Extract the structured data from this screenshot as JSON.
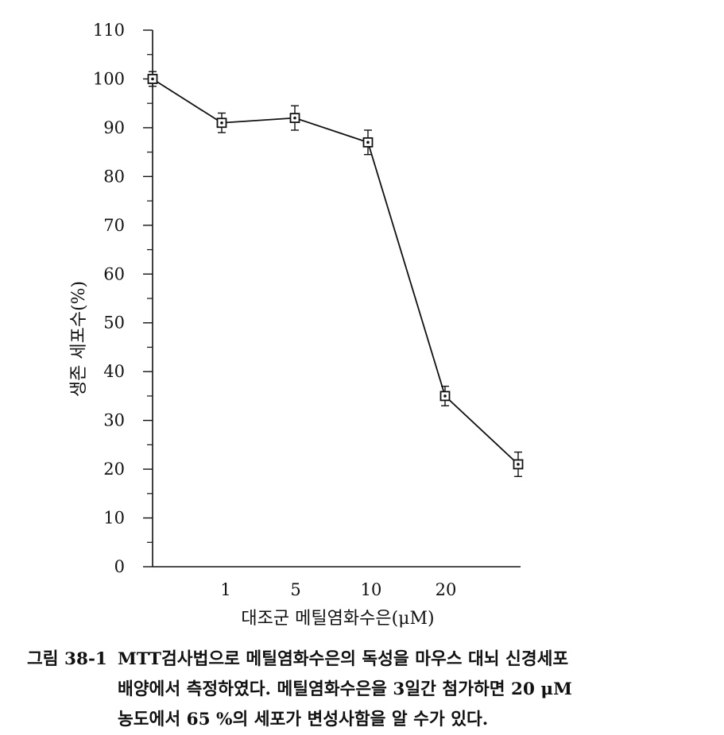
{
  "chart_data": {
    "type": "line",
    "x_categories": [
      "대조군",
      "1",
      "5",
      "10",
      "20",
      ""
    ],
    "x_tick_labels": [
      "1",
      "5",
      "10",
      "20"
    ],
    "series": [
      {
        "values": [
          100,
          91,
          92,
          87,
          35,
          21
        ],
        "error": [
          1.5,
          2,
          2.5,
          2.5,
          2,
          2.5
        ]
      }
    ],
    "y_ticks": [
      0,
      10,
      20,
      30,
      40,
      50,
      60,
      70,
      80,
      90,
      100,
      110
    ],
    "ylim": [
      0,
      110
    ],
    "ylabel": "생존 세포수(%)",
    "xlabel": "대조군 메틸염화수은(μM)",
    "marker": "square-open",
    "grid": false
  },
  "caption": {
    "label": "그림 38-1",
    "lines": [
      "MTT검사법으로 메틸염화수은의 독성을 마우스 대뇌 신경세포",
      "배양에서 측정하였다. 메틸염화수은을 3일간 첨가하면 20 μM",
      "농도에서 65 %의 세포가 변성사함을 알 수가 있다."
    ]
  }
}
